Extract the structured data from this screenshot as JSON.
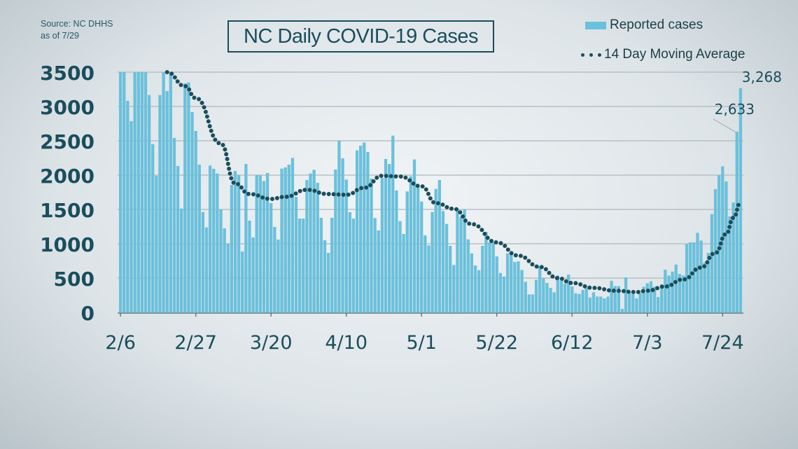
{
  "source": {
    "line1": "Source: NC DHHS",
    "line2": "as of 7/29"
  },
  "chart_data": {
    "type": "bar",
    "title": "NC Daily COVID-19 Cases",
    "xlabel": "",
    "ylabel": "",
    "ylim": [
      0,
      3500
    ],
    "grid": true,
    "legend_placement": "top-right",
    "y_ticks": [
      "0",
      "500",
      "1000",
      "1500",
      "2000",
      "2500",
      "3000",
      "3500"
    ],
    "y_tick_values": [
      0,
      500,
      1000,
      1500,
      2000,
      2500,
      3000,
      3500
    ],
    "x_ticks": [
      "2/6",
      "2/27",
      "3/20",
      "4/10",
      "5/1",
      "5/22",
      "6/12",
      "7/3",
      "7/24"
    ],
    "colors": {
      "bars": "#6bc0db",
      "average": "#1b4d5c",
      "text": "#1b4d5c"
    },
    "dates": [
      "2/6",
      "2/7",
      "2/8",
      "2/9",
      "2/10",
      "2/11",
      "2/12",
      "2/13",
      "2/14",
      "2/15",
      "2/16",
      "2/17",
      "2/18",
      "2/19",
      "2/20",
      "2/21",
      "2/22",
      "2/23",
      "2/24",
      "2/25",
      "2/26",
      "2/27",
      "2/28",
      "3/1",
      "3/2",
      "3/3",
      "3/4",
      "3/5",
      "3/6",
      "3/7",
      "3/8",
      "3/9",
      "3/10",
      "3/11",
      "3/12",
      "3/13",
      "3/14",
      "3/15",
      "3/16",
      "3/17",
      "3/18",
      "3/19",
      "3/20",
      "3/21",
      "3/22",
      "3/23",
      "3/24",
      "3/25",
      "3/26",
      "3/27",
      "3/28",
      "3/29",
      "3/30",
      "3/31",
      "4/1",
      "4/2",
      "4/3",
      "4/4",
      "4/5",
      "4/6",
      "4/7",
      "4/8",
      "4/9",
      "4/10",
      "4/11",
      "4/12",
      "4/13",
      "4/14",
      "4/15",
      "4/16",
      "4/17",
      "4/18",
      "4/19",
      "4/20",
      "4/21",
      "4/22",
      "4/23",
      "4/24",
      "4/25",
      "4/26",
      "4/27",
      "4/28",
      "4/29",
      "4/30",
      "5/1",
      "5/2",
      "5/3",
      "5/4",
      "5/5",
      "5/6",
      "5/7",
      "5/8",
      "5/9",
      "5/10",
      "5/11",
      "5/12",
      "5/13",
      "5/14",
      "5/15",
      "5/16",
      "5/17",
      "5/18",
      "5/19",
      "5/20",
      "5/21",
      "5/22",
      "5/23",
      "5/24",
      "5/25",
      "5/26",
      "5/27",
      "5/28",
      "5/29",
      "5/30",
      "5/31",
      "6/1",
      "6/2",
      "6/3",
      "6/4",
      "6/5",
      "6/6",
      "6/7",
      "6/8",
      "6/9",
      "6/10",
      "6/11",
      "6/12",
      "6/13",
      "6/14",
      "6/15",
      "6/16",
      "6/17",
      "6/18",
      "6/19",
      "6/20",
      "6/21",
      "6/22",
      "6/23",
      "6/24",
      "6/25",
      "6/26",
      "6/27",
      "6/28",
      "6/29",
      "6/30",
      "7/1",
      "7/2",
      "7/3",
      "7/4",
      "7/5",
      "7/6",
      "7/7",
      "7/8",
      "7/9",
      "7/10",
      "7/11",
      "7/12",
      "7/13",
      "7/14",
      "7/15",
      "7/16",
      "7/17",
      "7/18",
      "7/19",
      "7/20",
      "7/21",
      "7/22",
      "7/23",
      "7/24",
      "7/25",
      "7/26",
      "7/27",
      "7/28",
      "7/29"
    ],
    "series": [
      {
        "name": "Reported cases",
        "type": "bar",
        "values": [
          3500,
          3500,
          3082,
          2786,
          3500,
          3500,
          3500,
          3500,
          3166,
          2452,
          1990,
          3166,
          3500,
          3225,
          3500,
          2541,
          2133,
          1513,
          3337,
          3350,
          2918,
          2643,
          2153,
          1462,
          1238,
          2140,
          2092,
          2024,
          1500,
          1224,
          1000,
          1857,
          2061,
          2000,
          888,
          2163,
          1337,
          1092,
          2000,
          2000,
          1915,
          2031,
          1592,
          1245,
          1061,
          2095,
          2112,
          2153,
          2251,
          1684,
          1367,
          1367,
          1929,
          2024,
          2078,
          1888,
          1378,
          1051,
          867,
          1378,
          2082,
          2503,
          2245,
          1935,
          1462,
          1367,
          2360,
          2429,
          2475,
          2337,
          1949,
          1374,
          1194,
          1959,
          2235,
          2163,
          2575,
          1776,
          1330,
          1143,
          1762,
          1983,
          2228,
          1820,
          1616,
          1122,
          976,
          1462,
          1799,
          1929,
          1476,
          1289,
          969,
          691,
          1490,
          1391,
          1500,
          1064,
          860,
          684,
          615,
          969,
          1173,
          1020,
          1020,
          816,
          575,
          523,
          860,
          850,
          734,
          744,
          619,
          446,
          262,
          262,
          476,
          677,
          500,
          429,
          357,
          293,
          538,
          462,
          418,
          551,
          378,
          279,
          269,
          327,
          357,
          217,
          293,
          231,
          231,
          204,
          231,
          459,
          384,
          384,
          51,
          510,
          293,
          265,
          204,
          282,
          374,
          425,
          452,
          374,
          224,
          408,
          622,
          538,
          595,
          697,
          561,
          538,
          996,
          1020,
          1020,
          1159,
          1047,
          725,
          867,
          1431,
          1796,
          2000,
          2128,
          1908,
          1398,
          1601,
          2633,
          3268
        ]
      },
      {
        "name": "14 Day Moving Average",
        "type": "line",
        "points": [
          {
            "date": "2/19",
            "value": 3500
          },
          {
            "date": "2/24",
            "value": 3296
          },
          {
            "date": "2/27",
            "value": 3122
          },
          {
            "date": "3/6",
            "value": 2459
          },
          {
            "date": "3/10",
            "value": 1878
          },
          {
            "date": "3/14",
            "value": 1724
          },
          {
            "date": "3/20",
            "value": 1653
          },
          {
            "date": "3/24",
            "value": 1684
          },
          {
            "date": "3/30",
            "value": 1786
          },
          {
            "date": "4/5",
            "value": 1724
          },
          {
            "date": "4/10",
            "value": 1714
          },
          {
            "date": "4/15",
            "value": 1816
          },
          {
            "date": "4/20",
            "value": 1990
          },
          {
            "date": "4/25",
            "value": 1980
          },
          {
            "date": "5/1",
            "value": 1837
          },
          {
            "date": "5/5",
            "value": 1592
          },
          {
            "date": "5/10",
            "value": 1510
          },
          {
            "date": "5/15",
            "value": 1286
          },
          {
            "date": "5/22",
            "value": 1020
          },
          {
            "date": "5/28",
            "value": 827
          },
          {
            "date": "6/3",
            "value": 663
          },
          {
            "date": "6/8",
            "value": 500
          },
          {
            "date": "6/12",
            "value": 429
          },
          {
            "date": "6/18",
            "value": 357
          },
          {
            "date": "6/24",
            "value": 316
          },
          {
            "date": "6/30",
            "value": 296
          },
          {
            "date": "7/3",
            "value": 316
          },
          {
            "date": "7/8",
            "value": 378
          },
          {
            "date": "7/13",
            "value": 480
          },
          {
            "date": "7/18",
            "value": 653
          },
          {
            "date": "7/22",
            "value": 867
          },
          {
            "date": "7/25",
            "value": 1143
          },
          {
            "date": "7/27",
            "value": 1378
          },
          {
            "date": "7/29",
            "value": 1602
          }
        ]
      }
    ],
    "annotations": [
      {
        "date": "7/28",
        "label": "2,633"
      },
      {
        "date": "7/29",
        "label": "3,268"
      }
    ]
  }
}
